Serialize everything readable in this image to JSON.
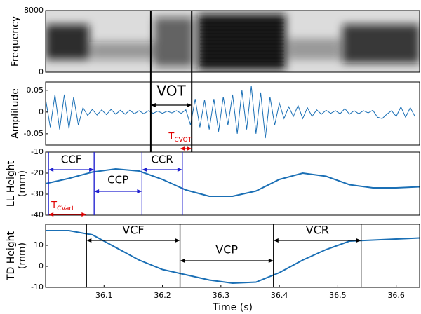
{
  "chart_data": [
    {
      "type": "spectrogram",
      "ylabel": [
        "Frequency"
      ],
      "xlim": [
        36.0,
        36.64
      ],
      "ylim": [
        0,
        8000
      ],
      "yticks": [
        0,
        8000
      ]
    },
    {
      "type": "line",
      "ylabel": [
        "Amplitude"
      ],
      "color": "#1a6fb5",
      "xlim": [
        36.0,
        36.64
      ],
      "ylim": [
        -0.076,
        0.069
      ],
      "yticks": [
        -0.05,
        0,
        0.05
      ],
      "x": [
        36.0,
        36.008,
        36.016,
        36.024,
        36.032,
        36.04,
        36.048,
        36.056,
        36.064,
        36.072,
        36.08,
        36.088,
        36.096,
        36.104,
        36.112,
        36.12,
        36.128,
        36.136,
        36.144,
        36.152,
        36.16,
        36.168,
        36.176,
        36.184,
        36.192,
        36.2,
        36.208,
        36.216,
        36.224,
        36.232,
        36.24,
        36.248,
        36.256,
        36.264,
        36.272,
        36.28,
        36.288,
        36.296,
        36.304,
        36.312,
        36.32,
        36.328,
        36.336,
        36.344,
        36.352,
        36.36,
        36.368,
        36.376,
        36.384,
        36.392,
        36.4,
        36.408,
        36.416,
        36.424,
        36.432,
        36.44,
        36.448,
        36.456,
        36.464,
        36.472,
        36.48,
        36.488,
        36.496,
        36.504,
        36.512,
        36.52,
        36.528,
        36.536,
        36.544,
        36.552,
        36.56,
        36.568,
        36.576,
        36.584,
        36.592,
        36.6,
        36.608,
        36.616,
        36.624,
        36.632
      ],
      "values": [
        0.03,
        -0.035,
        0.04,
        -0.04,
        0.04,
        -0.038,
        0.035,
        -0.03,
        0.01,
        -0.008,
        0.006,
        -0.007,
        0.005,
        -0.006,
        0.006,
        -0.005,
        0.004,
        -0.005,
        0.004,
        -0.004,
        0.003,
        -0.004,
        0.003,
        -0.003,
        0.002,
        -0.003,
        0.002,
        -0.002,
        0.003,
        -0.003,
        0.005,
        -0.03,
        0.03,
        -0.035,
        0.028,
        -0.04,
        0.03,
        -0.045,
        0.035,
        -0.03,
        0.04,
        -0.05,
        0.05,
        -0.04,
        0.06,
        -0.05,
        0.045,
        -0.06,
        0.035,
        -0.03,
        0.02,
        -0.015,
        0.012,
        -0.01,
        0.015,
        -0.015,
        0.01,
        -0.01,
        0.005,
        -0.005,
        0.004,
        -0.003,
        0.003,
        -0.004,
        0.008,
        -0.005,
        0.003,
        -0.004,
        0.003,
        -0.002,
        0.004,
        -0.012,
        -0.015,
        -0.005,
        0.003,
        -0.01,
        0.012,
        -0.012,
        0.01,
        -0.01
      ],
      "annotations": [
        {
          "label": "VOT",
          "start": 36.18,
          "end": 36.25,
          "color": "#000000"
        },
        {
          "label": {
            "main": "T",
            "sub": "CVOT"
          },
          "start": 36.23,
          "end": 36.25,
          "color": "#e00000"
        }
      ]
    },
    {
      "type": "line",
      "ylabel": [
        "LL Height",
        "(mm)"
      ],
      "color": "#1a6fb5",
      "xlim": [
        36.0,
        36.64
      ],
      "ylim": [
        -40,
        -10
      ],
      "yticks": [
        -40,
        -30,
        -20,
        -10
      ],
      "x": [
        36.0,
        36.04,
        36.08,
        36.12,
        36.16,
        36.2,
        36.24,
        36.28,
        36.32,
        36.36,
        36.4,
        36.44,
        36.48,
        36.52,
        36.56,
        36.6,
        36.64
      ],
      "values": [
        -25,
        -22.5,
        -19.5,
        -18,
        -19,
        -23,
        -28,
        -31,
        -31,
        -28.5,
        -23,
        -20,
        -21.5,
        -25.5,
        -27,
        -27,
        -26.5
      ],
      "annotations": [
        {
          "label": "CCF",
          "start": 36.005,
          "end": 36.083,
          "color": "#2020d0"
        },
        {
          "label": "CCP",
          "start": 36.083,
          "end": 36.165,
          "color": "#2020d0"
        },
        {
          "label": "CCR",
          "start": 36.165,
          "end": 36.234,
          "color": "#2020d0"
        },
        {
          "label": {
            "main": "T",
            "sub": "CVart"
          },
          "start": 36.005,
          "end": 36.07,
          "color": "#e00000"
        }
      ]
    },
    {
      "type": "line",
      "ylabel": [
        "TD Height",
        "(mm)"
      ],
      "xlabel": "Time (s)",
      "color": "#1a6fb5",
      "xlim": [
        36.0,
        36.64
      ],
      "ylim": [
        -10,
        20
      ],
      "yticks": [
        -10,
        0,
        10
      ],
      "xticks": [
        36.1,
        36.2,
        36.3,
        36.4,
        36.5,
        36.6
      ],
      "x": [
        36.0,
        36.04,
        36.08,
        36.12,
        36.16,
        36.2,
        36.24,
        36.28,
        36.32,
        36.36,
        36.4,
        36.44,
        36.48,
        36.52,
        36.56,
        36.6,
        36.64
      ],
      "values": [
        17,
        17,
        15,
        9,
        3,
        -1.5,
        -4,
        -6.5,
        -8,
        -7.5,
        -3,
        3,
        8,
        12,
        12.5,
        13,
        13.5
      ],
      "annotations": [
        {
          "label": "VCF",
          "start": 36.07,
          "end": 36.23,
          "color": "#000000"
        },
        {
          "label": "VCP",
          "start": 36.23,
          "end": 36.39,
          "color": "#000000"
        },
        {
          "label": "VCR",
          "start": 36.39,
          "end": 36.54,
          "color": "#000000"
        }
      ]
    }
  ]
}
